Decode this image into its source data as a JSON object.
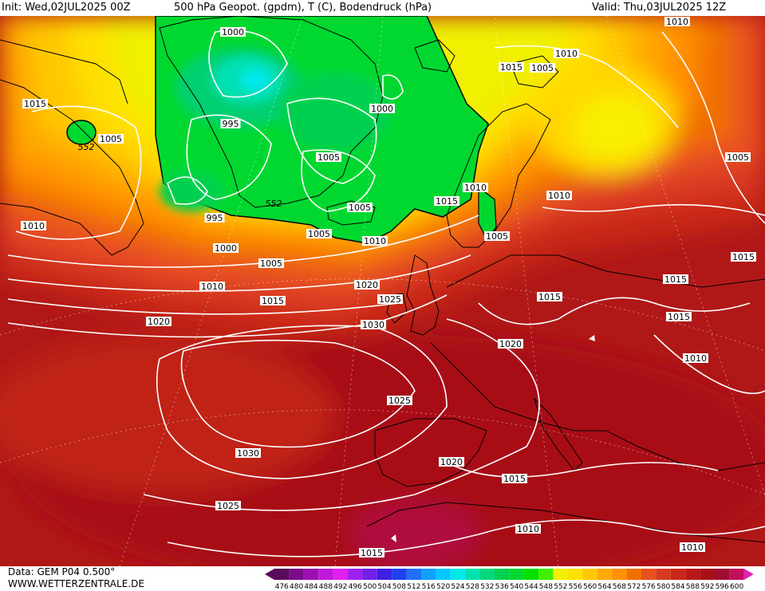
{
  "header": {
    "init": "Init: Wed,02JUL2025 00Z",
    "title": "500 hPa Geopot. (gpdm), T (C), Bodendruck (hPa)",
    "valid": "Valid: Thu,03JUL2025 12Z"
  },
  "footer": {
    "data_source": "Data: GEM P04 0.500°",
    "website": "WWW.WETTERZENTRALE.DE"
  },
  "legend": {
    "values": [
      "476",
      "480",
      "484",
      "488",
      "492",
      "496",
      "500",
      "504",
      "508",
      "512",
      "516",
      "520",
      "524",
      "528",
      "532",
      "536",
      "540",
      "544",
      "548",
      "552",
      "556",
      "560",
      "564",
      "568",
      "572",
      "576",
      "580",
      "584",
      "588",
      "592",
      "596",
      "600"
    ],
    "colors": [
      "#5a0a5a",
      "#7a0a8a",
      "#9a10b0",
      "#c018d8",
      "#e020f0",
      "#a020f0",
      "#7020e8",
      "#4020e0",
      "#2040f0",
      "#2070f8",
      "#10a0ff",
      "#00c8ff",
      "#00e8e8",
      "#00e0b0",
      "#00d880",
      "#00d050",
      "#00d830",
      "#00e000",
      "#40f000",
      "#f0f000",
      "#ffe000",
      "#ffc800",
      "#ffa800",
      "#ff9000",
      "#f07000",
      "#e85020",
      "#d83820",
      "#c82818",
      "#b81818",
      "#a81018",
      "#a00c30",
      "#c0105a"
    ]
  },
  "map_labels": {
    "isobars": [
      "1000",
      "995",
      "1000",
      "1005",
      "1005",
      "1015",
      "1005",
      "1010",
      "1015",
      "1005",
      "1010",
      "1005",
      "1010",
      "1015",
      "1010",
      "1015",
      "1010",
      "995",
      "552",
      "1000",
      "1005",
      "1005",
      "1010",
      "1020",
      "1025",
      "1015",
      "1030",
      "1020",
      "1015",
      "1005",
      "1010",
      "1015",
      "1015",
      "1010",
      "1020",
      "1025",
      "1030",
      "1025",
      "1020",
      "1015",
      "1015",
      "1010",
      "1010",
      "552"
    ]
  }
}
